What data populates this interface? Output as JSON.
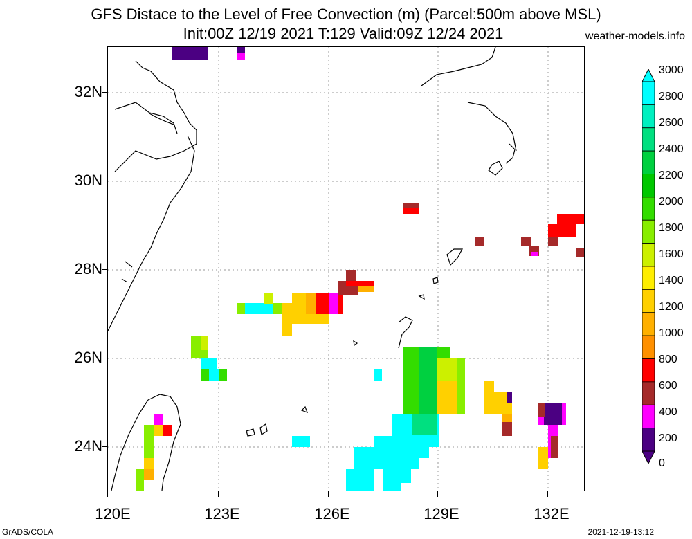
{
  "title_line1": "GFS Distace to the Level of Free Convection (m) (Parcel:500m above MSL)",
  "title_line2": "Init:00Z 12/19 2021 T:129 Valid:09Z 12/24 2021",
  "site": "weather-models.info",
  "footer_left": "GrADS/COLA",
  "footer_right": "2021-12-19-13:12",
  "lat_labels": [
    "32N",
    "30N",
    "28N",
    "26N",
    "24N"
  ],
  "lon_labels": [
    "120E",
    "123E",
    "126E",
    "129E",
    "132E"
  ],
  "colorbar": {
    "labels": [
      "3000",
      "2800",
      "2600",
      "2400",
      "2200",
      "2000",
      "1800",
      "1600",
      "1400",
      "1200",
      "1000",
      "800",
      "600",
      "400",
      "200",
      "0"
    ],
    "colors": [
      "#00ffff",
      "#00f0c0",
      "#00e080",
      "#00d040",
      "#00c800",
      "#33dd00",
      "#88ee00",
      "#ccf000",
      "#ffee00",
      "#ffd000",
      "#ffb000",
      "#ff9000",
      "#ff0000",
      "#a52a2a",
      "#ff00ff",
      "#4b0082"
    ]
  }
}
